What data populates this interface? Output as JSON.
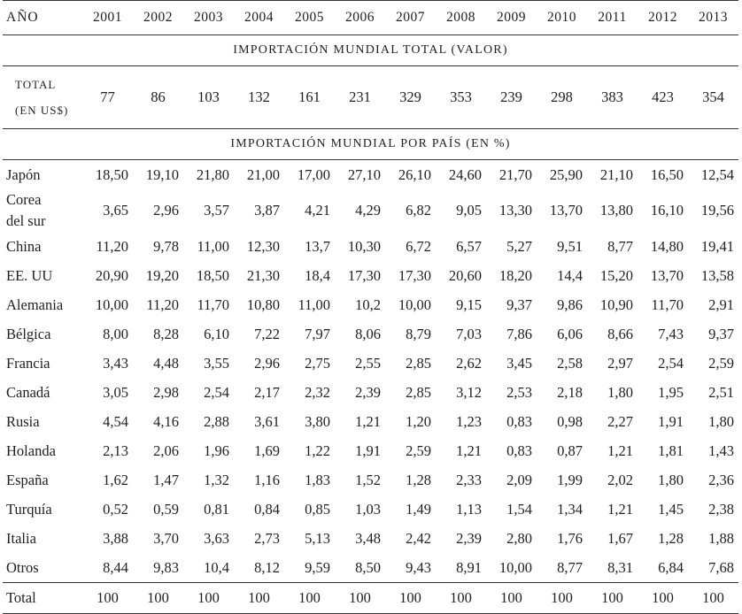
{
  "header": {
    "label": "AÑO",
    "years": [
      "2001",
      "2002",
      "2003",
      "2004",
      "2005",
      "2006",
      "2007",
      "2008",
      "2009",
      "2010",
      "2011",
      "2012",
      "2013"
    ]
  },
  "section_total": {
    "title": "IMPORTACIÓN MUNDIAL TOTAL (VALOR)",
    "label_line1": "TOTAL",
    "label_line2": "(EN US$)",
    "values": [
      "77",
      "86",
      "103",
      "132",
      "161",
      "231",
      "329",
      "353",
      "239",
      "298",
      "383",
      "423",
      "354"
    ]
  },
  "section_country": {
    "title": "IMPORTACIÓN MUNDIAL POR PAÍS (EN %)",
    "rows": [
      {
        "label": "Japón",
        "values": [
          "18,50",
          "19,10",
          "21,80",
          "21,00",
          "17,00",
          "27,10",
          "26,10",
          "24,60",
          "21,70",
          "25,90",
          "21,10",
          "16,50",
          "12,54"
        ]
      },
      {
        "label": "Corea del sur",
        "label_line1": "Corea",
        "label_line2": "del sur",
        "values": [
          "3,65",
          "2,96",
          "3,57",
          "3,87",
          "4,21",
          "4,29",
          "6,82",
          "9,05",
          "13,30",
          "13,70",
          "13,80",
          "16,10",
          "19,56"
        ]
      },
      {
        "label": "China",
        "values": [
          "11,20",
          "9,78",
          "11,00",
          "12,30",
          "13,7",
          "10,30",
          "6,72",
          "6,57",
          "5,27",
          "9,51",
          "8,77",
          "14,80",
          "19,41"
        ]
      },
      {
        "label": "EE. UU",
        "values": [
          "20,90",
          "19,20",
          "18,50",
          "21,30",
          "18,4",
          "17,30",
          "17,30",
          "20,60",
          "18,20",
          "14,4",
          "15,20",
          "13,70",
          "13,58"
        ]
      },
      {
        "label": "Alemania",
        "values": [
          "10,00",
          "11,20",
          "11,70",
          "10,80",
          "11,00",
          "10,2",
          "10,00",
          "9,15",
          "9,37",
          "9,86",
          "10,90",
          "11,70",
          "2,91"
        ]
      },
      {
        "label": "Bélgica",
        "values": [
          "8,00",
          "8,28",
          "6,10",
          "7,22",
          "7,97",
          "8,06",
          "8,79",
          "7,03",
          "7,86",
          "6,06",
          "8,66",
          "7,43",
          "9,37"
        ]
      },
      {
        "label": "Francia",
        "values": [
          "3,43",
          "4,48",
          "3,55",
          "2,96",
          "2,75",
          "2,55",
          "2,85",
          "2,62",
          "3,45",
          "2,58",
          "2,97",
          "2,54",
          "2,59"
        ]
      },
      {
        "label": "Canadá",
        "values": [
          "3,05",
          "2,98",
          "2,54",
          "2,17",
          "2,32",
          "2,39",
          "2,85",
          "3,12",
          "2,53",
          "2,18",
          "1,80",
          "1,95",
          "2,51"
        ]
      },
      {
        "label": "Rusia",
        "values": [
          "4,54",
          "4,16",
          "2,88",
          "3,61",
          "3,80",
          "1,21",
          "1,20",
          "1,23",
          "0,83",
          "0,98",
          "2,27",
          "1,91",
          "1,80"
        ]
      },
      {
        "label": "Holanda",
        "values": [
          "2,13",
          "2,06",
          "1,96",
          "1,69",
          "1,22",
          "1,91",
          "2,59",
          "1,21",
          "0,83",
          "0,87",
          "1,21",
          "1,81",
          "1,43"
        ]
      },
      {
        "label": "España",
        "values": [
          "1,62",
          "1,47",
          "1,32",
          "1,16",
          "1,83",
          "1,52",
          "1,28",
          "2,33",
          "2,09",
          "1,99",
          "2,02",
          "1,80",
          "2,36"
        ]
      },
      {
        "label": "Turquía",
        "values": [
          "0,52",
          "0,59",
          "0,81",
          "0,84",
          "0,85",
          "1,03",
          "1,49",
          "1,13",
          "1,54",
          "1,34",
          "1,21",
          "1,45",
          "2,38"
        ]
      },
      {
        "label": "Italia",
        "values": [
          "3,88",
          "3,70",
          "3,63",
          "2,73",
          "5,13",
          "3,48",
          "2,42",
          "2,39",
          "2,80",
          "1,76",
          "1,67",
          "1,28",
          "1,88"
        ]
      },
      {
        "label": "Otros",
        "values": [
          "8,44",
          "9,83",
          "10,4",
          "8,12",
          "9,59",
          "8,50",
          "9,43",
          "8,91",
          "10,00",
          "8,77",
          "8,31",
          "6,84",
          "7,68"
        ]
      }
    ],
    "total_row": {
      "label": "Total",
      "values": [
        "100",
        "100",
        "100",
        "100",
        "100",
        "100",
        "100",
        "100",
        "100",
        "100",
        "100",
        "100",
        "100"
      ]
    }
  }
}
